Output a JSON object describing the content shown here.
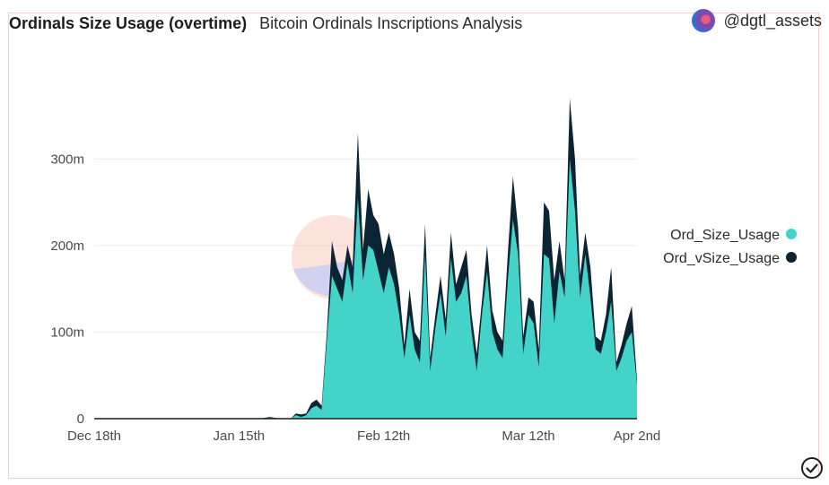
{
  "header": {
    "title": "Ordinals Size Usage (overtime)",
    "subtitle": "Bitcoin Ordinals Inscriptions Analysis",
    "author": "@dgtl_assets"
  },
  "icons": {
    "status": "check-circle-icon",
    "watermark": "dune-watermark",
    "avatar": "user-avatar"
  },
  "colors": {
    "ord_size": "#43d3c9",
    "ord_vsize": "#0b2433",
    "grid": "#ececec",
    "frame": "#f1d2c8"
  },
  "chart_data": {
    "type": "area",
    "stacked": false,
    "x_ticks": [
      "Dec 18th",
      "Jan 15th",
      "Feb 12th",
      "Mar 12th",
      "Apr 2nd"
    ],
    "x_tick_dates": [
      "2022-12-18",
      "2023-01-15",
      "2023-02-12",
      "2023-03-12",
      "2023-04-02"
    ],
    "y_ticks": [
      "0",
      "100m",
      "200m",
      "300m"
    ],
    "y_tick_values": [
      0,
      100000000,
      200000000,
      300000000
    ],
    "ylim": [
      0,
      380000000
    ],
    "grid": "horizontal",
    "legend_position": "right",
    "x": [
      "2022-12-18",
      "2022-12-20",
      "2022-12-22",
      "2022-12-24",
      "2022-12-26",
      "2022-12-28",
      "2022-12-30",
      "2023-01-01",
      "2023-01-03",
      "2023-01-05",
      "2023-01-07",
      "2023-01-09",
      "2023-01-11",
      "2023-01-13",
      "2023-01-15",
      "2023-01-17",
      "2023-01-19",
      "2023-01-21",
      "2023-01-23",
      "2023-01-24",
      "2023-01-25",
      "2023-01-26",
      "2023-01-27",
      "2023-01-28",
      "2023-01-29",
      "2023-01-30",
      "2023-01-31",
      "2023-02-01",
      "2023-02-02",
      "2023-02-03",
      "2023-02-04",
      "2023-02-05",
      "2023-02-06",
      "2023-02-07",
      "2023-02-08",
      "2023-02-09",
      "2023-02-10",
      "2023-02-11",
      "2023-02-12",
      "2023-02-13",
      "2023-02-14",
      "2023-02-15",
      "2023-02-16",
      "2023-02-17",
      "2023-02-18",
      "2023-02-19",
      "2023-02-20",
      "2023-02-21",
      "2023-02-22",
      "2023-02-23",
      "2023-02-24",
      "2023-02-25",
      "2023-02-26",
      "2023-02-27",
      "2023-02-28",
      "2023-03-01",
      "2023-03-02",
      "2023-03-03",
      "2023-03-04",
      "2023-03-05",
      "2023-03-06",
      "2023-03-07",
      "2023-03-08",
      "2023-03-09",
      "2023-03-10",
      "2023-03-11",
      "2023-03-12",
      "2023-03-13",
      "2023-03-14",
      "2023-03-15",
      "2023-03-16",
      "2023-03-17",
      "2023-03-18",
      "2023-03-19",
      "2023-03-20",
      "2023-03-21",
      "2023-03-22",
      "2023-03-23",
      "2023-03-24",
      "2023-03-25",
      "2023-03-26",
      "2023-03-27",
      "2023-03-28",
      "2023-03-29",
      "2023-03-30",
      "2023-03-31",
      "2023-04-01",
      "2023-04-02"
    ],
    "series": [
      {
        "name": "Ord_Size_Usage",
        "values": [
          0,
          0,
          0,
          0,
          0,
          0,
          0,
          0,
          0,
          0,
          0,
          0,
          0,
          0,
          0,
          0,
          0,
          1000000,
          0,
          0,
          0,
          4000000,
          2000000,
          4000000,
          12000000,
          15000000,
          10000000,
          90000000,
          165000000,
          150000000,
          135000000,
          180000000,
          145000000,
          255000000,
          160000000,
          200000000,
          195000000,
          170000000,
          145000000,
          175000000,
          155000000,
          120000000,
          70000000,
          120000000,
          80000000,
          65000000,
          190000000,
          55000000,
          105000000,
          145000000,
          95000000,
          185000000,
          135000000,
          145000000,
          165000000,
          100000000,
          55000000,
          120000000,
          170000000,
          100000000,
          80000000,
          70000000,
          160000000,
          230000000,
          190000000,
          75000000,
          120000000,
          110000000,
          60000000,
          190000000,
          185000000,
          110000000,
          170000000,
          140000000,
          300000000,
          240000000,
          140000000,
          190000000,
          140000000,
          80000000,
          75000000,
          100000000,
          135000000,
          55000000,
          70000000,
          90000000,
          100000000,
          40000000
        ]
      },
      {
        "name": "Ord_vSize_Usage",
        "values": [
          0,
          0,
          0,
          0,
          0,
          0,
          0,
          0,
          0,
          0,
          0,
          0,
          0,
          0,
          0,
          0,
          0,
          2000000,
          0,
          0,
          0,
          6000000,
          5000000,
          6000000,
          18000000,
          22000000,
          15000000,
          100000000,
          205000000,
          175000000,
          160000000,
          200000000,
          175000000,
          330000000,
          195000000,
          265000000,
          235000000,
          225000000,
          190000000,
          215000000,
          190000000,
          150000000,
          85000000,
          150000000,
          100000000,
          90000000,
          225000000,
          70000000,
          120000000,
          165000000,
          115000000,
          215000000,
          155000000,
          175000000,
          195000000,
          120000000,
          75000000,
          135000000,
          200000000,
          125000000,
          100000000,
          90000000,
          190000000,
          280000000,
          220000000,
          95000000,
          140000000,
          135000000,
          80000000,
          250000000,
          240000000,
          160000000,
          205000000,
          160000000,
          370000000,
          300000000,
          165000000,
          215000000,
          175000000,
          95000000,
          90000000,
          120000000,
          175000000,
          65000000,
          85000000,
          110000000,
          130000000,
          45000000
        ]
      }
    ]
  }
}
